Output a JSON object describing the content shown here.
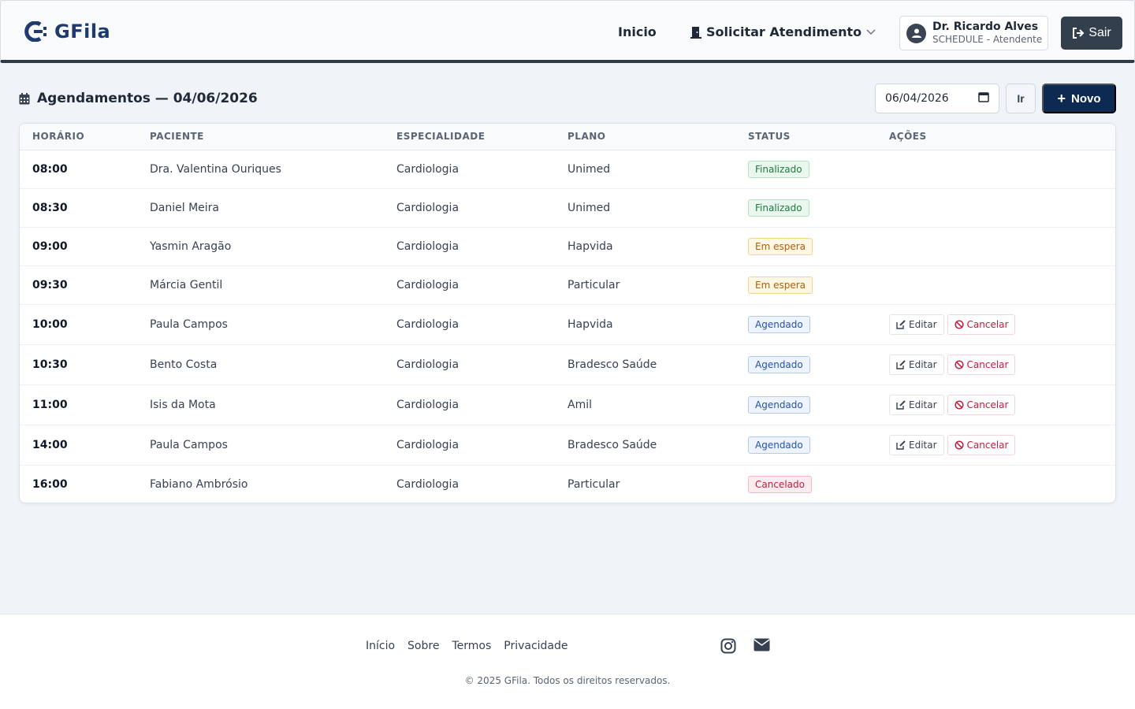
{
  "header": {
    "brand": "GFila",
    "nav_home": "Inicio",
    "nav_solicitar": "Solicitar Atendimento",
    "user_name": "Dr. Ricardo Alves",
    "user_role": "SCHEDULE - Atendente",
    "logout_label": "Sair"
  },
  "toolbar": {
    "title": "Agendamentos — 04/06/2026",
    "date_value": "06/04/2026",
    "go_label": "Ir",
    "new_label": "Novo"
  },
  "table": {
    "columns": [
      "HORÁRIO",
      "PACIENTE",
      "ESPECIALIDADE",
      "PLANO",
      "STATUS",
      "AÇÕES"
    ],
    "edit_label": "Editar",
    "cancel_label": "Cancelar",
    "rows": [
      {
        "time": "08:00",
        "patient": "Dra. Valentina Ouriques",
        "specialty": "Cardiologia",
        "plan": "Unimed",
        "status": "Finalizado",
        "status_kind": "fin",
        "actions": false
      },
      {
        "time": "08:30",
        "patient": "Daniel Meira",
        "specialty": "Cardiologia",
        "plan": "Unimed",
        "status": "Finalizado",
        "status_kind": "fin",
        "actions": false
      },
      {
        "time": "09:00",
        "patient": "Yasmin Aragão",
        "specialty": "Cardiologia",
        "plan": "Hapvida",
        "status": "Em espera",
        "status_kind": "esp",
        "actions": false
      },
      {
        "time": "09:30",
        "patient": "Márcia Gentil",
        "specialty": "Cardiologia",
        "plan": "Particular",
        "status": "Em espera",
        "status_kind": "esp",
        "actions": false
      },
      {
        "time": "10:00",
        "patient": "Paula Campos",
        "specialty": "Cardiologia",
        "plan": "Hapvida",
        "status": "Agendado",
        "status_kind": "age",
        "actions": true
      },
      {
        "time": "10:30",
        "patient": "Bento Costa",
        "specialty": "Cardiologia",
        "plan": "Bradesco Saúde",
        "status": "Agendado",
        "status_kind": "age",
        "actions": true
      },
      {
        "time": "11:00",
        "patient": "Isis da Mota",
        "specialty": "Cardiologia",
        "plan": "Amil",
        "status": "Agendado",
        "status_kind": "age",
        "actions": true
      },
      {
        "time": "14:00",
        "patient": "Paula Campos",
        "specialty": "Cardiologia",
        "plan": "Bradesco Saúde",
        "status": "Agendado",
        "status_kind": "age",
        "actions": true
      },
      {
        "time": "16:00",
        "patient": "Fabiano Ambrósio",
        "specialty": "Cardiologia",
        "plan": "Particular",
        "status": "Cancelado",
        "status_kind": "can",
        "actions": false
      }
    ]
  },
  "footer": {
    "links": [
      "Início",
      "Sobre",
      "Termos",
      "Privacidade"
    ],
    "social_icons": [
      "instagram-icon",
      "email-icon"
    ],
    "copyright": "© 2025 GFila. Todos os direitos reservados."
  },
  "colors": {
    "brand": "#1e3a6e",
    "primary_button": "#0d2a52",
    "logout_button": "#343f4e"
  }
}
